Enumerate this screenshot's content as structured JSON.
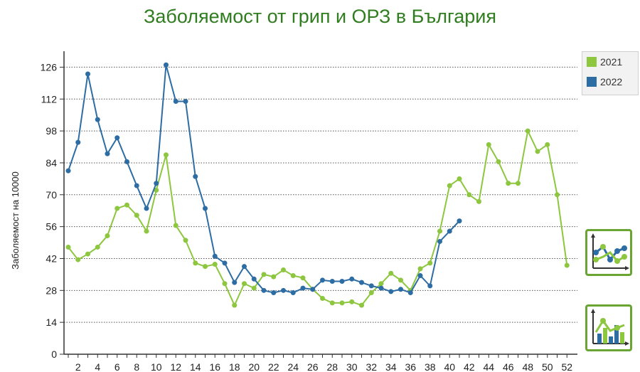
{
  "chart_data": {
    "type": "line",
    "title": "Заболяемост от грип и ОРЗ в България",
    "ylabel": "Заболяемост на 10000",
    "xlabel": "",
    "ylim": [
      0,
      133
    ],
    "yticks": [
      0,
      14,
      28,
      42,
      56,
      70,
      84,
      98,
      112,
      126
    ],
    "xticks": [
      2,
      4,
      6,
      8,
      10,
      12,
      14,
      16,
      18,
      20,
      22,
      24,
      26,
      28,
      30,
      32,
      34,
      36,
      38,
      40,
      42,
      44,
      46,
      48,
      50,
      52
    ],
    "xlim": [
      0,
      53
    ],
    "grid": true,
    "legend_position": "top-right",
    "series": [
      {
        "name": "2021",
        "color": "#8dc63f",
        "x": [
          1,
          2,
          3,
          4,
          5,
          6,
          7,
          8,
          9,
          10,
          11,
          12,
          13,
          14,
          15,
          16,
          17,
          18,
          19,
          20,
          21,
          22,
          23,
          24,
          25,
          26,
          27,
          28,
          29,
          30,
          31,
          32,
          33,
          34,
          35,
          36,
          37,
          38,
          39,
          40,
          41,
          42,
          43,
          44,
          45,
          46,
          47,
          48,
          49,
          50,
          51,
          52
        ],
        "values": [
          47,
          41.5,
          44,
          47,
          52,
          64,
          65.5,
          61,
          54,
          72,
          87.5,
          56.5,
          50,
          40,
          38.5,
          39.5,
          31,
          21.5,
          31,
          29,
          35,
          34,
          37,
          34.5,
          33.5,
          28.5,
          24.5,
          22.5,
          22.5,
          23,
          21.5,
          27,
          31,
          35.5,
          32.5,
          28,
          37.5,
          40,
          54,
          74,
          77,
          70,
          67,
          92,
          84.5,
          75,
          75,
          98,
          89,
          92,
          70,
          39
        ]
      },
      {
        "name": "2022",
        "color": "#2e6da4",
        "x": [
          1,
          2,
          3,
          4,
          5,
          6,
          7,
          8,
          9,
          10,
          11,
          12,
          13,
          14,
          15,
          16,
          17,
          18,
          19,
          20,
          21,
          22,
          23,
          24,
          25,
          26,
          27,
          28,
          29,
          30,
          31,
          32,
          33,
          34,
          35,
          36,
          37,
          38,
          39,
          40,
          41
        ],
        "values": [
          80.5,
          93,
          123,
          103,
          88,
          95,
          84.5,
          74,
          64,
          75,
          127,
          111,
          111,
          78,
          64,
          43,
          40,
          31.5,
          38.5,
          33,
          28,
          27,
          28,
          27,
          29,
          28.5,
          32.5,
          32,
          32,
          33,
          31.5,
          30,
          29,
          27.5,
          28.5,
          27,
          34.5,
          30,
          49.5,
          54,
          58.5
        ]
      }
    ]
  },
  "buttons": {
    "line_view_icon": "line-chart-icon",
    "bar_view_icon": "bar-chart-icon"
  }
}
